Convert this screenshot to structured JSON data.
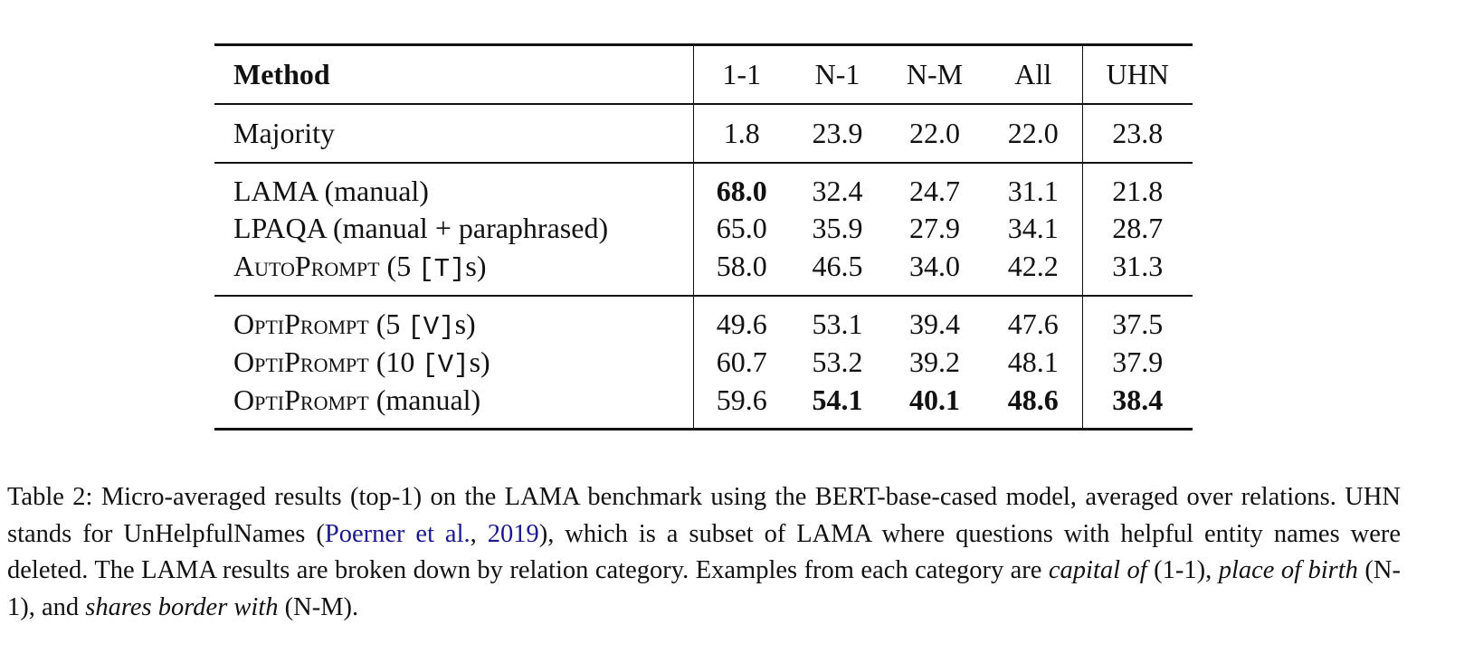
{
  "table": {
    "header": [
      "Method",
      "1-1",
      "N-1",
      "N-M",
      "All",
      "UHN"
    ],
    "rows": [
      {
        "method": [
          "Majority"
        ],
        "values": [
          "1.8",
          "23.9",
          "22.0",
          "22.0",
          "23.8"
        ]
      },
      {
        "method": [
          "LAMA (manual)"
        ],
        "values": [
          "68.0",
          "32.4",
          "24.7",
          "31.1",
          "21.8"
        ]
      },
      {
        "method": [
          "LPAQA (manual + paraphrased)"
        ],
        "values": [
          "65.0",
          "35.9",
          "27.9",
          "34.1",
          "28.7"
        ]
      },
      {
        "method": [
          "AutoPrompt",
          " (5 ",
          "[T]",
          "s)"
        ],
        "values": [
          "58.0",
          "46.5",
          "34.0",
          "42.2",
          "31.3"
        ]
      },
      {
        "method": [
          "OptiPrompt",
          " (5 ",
          "[V]",
          "s)"
        ],
        "values": [
          "49.6",
          "53.1",
          "39.4",
          "47.6",
          "37.5"
        ]
      },
      {
        "method": [
          "OptiPrompt",
          " (10 ",
          "[V]",
          "s)"
        ],
        "values": [
          "60.7",
          "53.2",
          "39.2",
          "48.1",
          "37.9"
        ]
      },
      {
        "method": [
          "OptiPrompt",
          " (manual)"
        ],
        "values": [
          "59.6",
          "54.1",
          "40.1",
          "48.6",
          "38.4"
        ]
      }
    ]
  },
  "caption": [
    "Table 2: Micro-averaged results (top-1) on the LAMA benchmark using the BERT-base-cased model, averaged over relations. UHN stands for UnHelpfulNames (",
    "Poerner et al.",
    ", ",
    "2019",
    "), which is a subset of LAMA where questions with helpful entity names were deleted. The LAMA results are broken down by relation category. Examples from each category are ",
    "capital of",
    " (1-1), ",
    "place of birth",
    " (N-1), and ",
    "shares border with",
    " (N-M)."
  ]
}
